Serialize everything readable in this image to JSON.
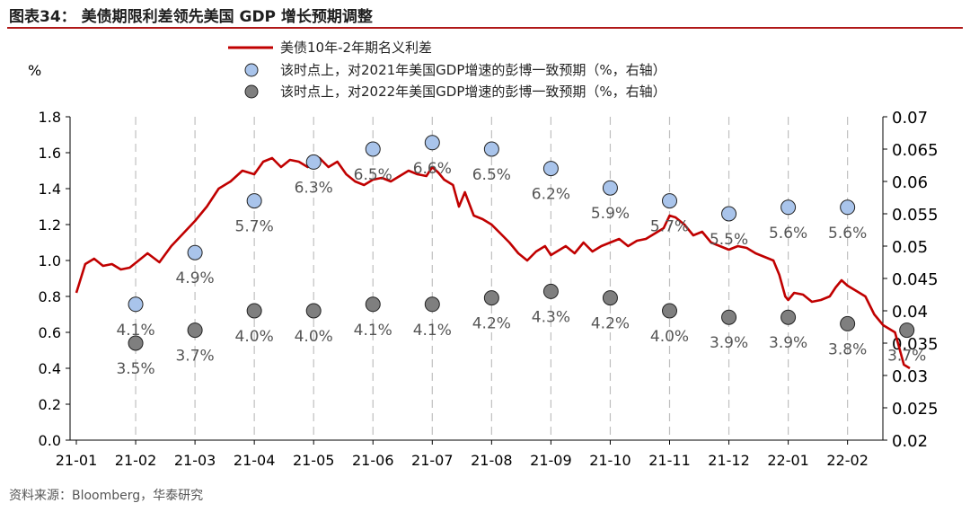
{
  "figure_title": "图表34：  美债期限利差领先美国 GDP 增长预期调整",
  "source": "资料来源：Bloomberg，华泰研究",
  "colors": {
    "spread": "#c00000",
    "gdp2021": "#a9c4eb",
    "gdp2022": "#7f7f7f",
    "axis": "#000000",
    "grid": "#bfbfbf",
    "title_rule": "#b01818"
  },
  "chart_data": {
    "type": "line",
    "left_axis": {
      "unit_label": "%",
      "min": 0.0,
      "max": 1.8,
      "ticks": [
        "0.0",
        "0.2",
        "0.4",
        "0.6",
        "0.8",
        "1.0",
        "1.2",
        "1.4",
        "1.6",
        "1.8"
      ]
    },
    "right_axis": {
      "min": 0.02,
      "max": 0.07,
      "ticks": [
        "0.02",
        "0.025",
        "0.03",
        "0.035",
        "0.04",
        "0.045",
        "0.05",
        "0.055",
        "0.06",
        "0.065",
        "0.07"
      ]
    },
    "x_ticks": [
      "21-01",
      "21-02",
      "21-03",
      "21-04",
      "21-05",
      "21-06",
      "21-07",
      "21-08",
      "21-09",
      "21-10",
      "21-11",
      "21-12",
      "22-01",
      "22-02"
    ],
    "series": [
      {
        "name": "美债10年-2年期名义利差",
        "axis": "left",
        "x": [
          0.0,
          0.15,
          0.3,
          0.45,
          0.6,
          0.75,
          0.9,
          1.05,
          1.2,
          1.4,
          1.6,
          1.8,
          2.0,
          2.2,
          2.4,
          2.6,
          2.8,
          3.0,
          3.15,
          3.3,
          3.45,
          3.6,
          3.75,
          3.9,
          4.0,
          4.1,
          4.25,
          4.4,
          4.55,
          4.7,
          4.85,
          5.0,
          5.15,
          5.3,
          5.45,
          5.6,
          5.75,
          5.9,
          6.0,
          6.1,
          6.2,
          6.35,
          6.45,
          6.55,
          6.7,
          6.85,
          7.0,
          7.15,
          7.3,
          7.45,
          7.6,
          7.75,
          7.9,
          8.0,
          8.1,
          8.25,
          8.4,
          8.55,
          8.7,
          8.85,
          9.0,
          9.15,
          9.3,
          9.45,
          9.6,
          9.75,
          9.9,
          10.0,
          10.1,
          10.25,
          10.4,
          10.55,
          10.7,
          10.85,
          11.0,
          11.15,
          11.3,
          11.45,
          11.6,
          11.75,
          11.85,
          11.95,
          12.0,
          12.1,
          12.25,
          12.4,
          12.55,
          12.7,
          12.8,
          12.9,
          13.0,
          13.15,
          13.3,
          13.45,
          13.6,
          13.8,
          13.95,
          14.05
        ],
        "values": [
          0.82,
          0.98,
          1.01,
          0.97,
          0.98,
          0.95,
          0.96,
          1.0,
          1.04,
          0.99,
          1.08,
          1.15,
          1.22,
          1.3,
          1.4,
          1.44,
          1.5,
          1.48,
          1.55,
          1.57,
          1.52,
          1.56,
          1.55,
          1.52,
          1.56,
          1.57,
          1.52,
          1.55,
          1.48,
          1.44,
          1.42,
          1.45,
          1.46,
          1.44,
          1.47,
          1.5,
          1.48,
          1.47,
          1.52,
          1.49,
          1.45,
          1.42,
          1.3,
          1.38,
          1.25,
          1.23,
          1.2,
          1.15,
          1.1,
          1.04,
          1.0,
          1.05,
          1.08,
          1.03,
          1.05,
          1.08,
          1.04,
          1.1,
          1.05,
          1.08,
          1.1,
          1.12,
          1.08,
          1.11,
          1.12,
          1.15,
          1.18,
          1.25,
          1.24,
          1.2,
          1.14,
          1.16,
          1.1,
          1.08,
          1.06,
          1.08,
          1.07,
          1.04,
          1.02,
          1.0,
          0.92,
          0.8,
          0.78,
          0.82,
          0.81,
          0.77,
          0.78,
          0.8,
          0.85,
          0.89,
          0.86,
          0.83,
          0.8,
          0.7,
          0.64,
          0.6,
          0.42,
          0.4
        ]
      },
      {
        "name": "该时点上，对2021年美国GDP增速的彭博一致预期（%，右轴）",
        "axis": "right",
        "x": [
          1,
          2,
          3,
          4,
          5,
          6,
          7,
          8,
          9,
          10,
          11,
          12,
          13
        ],
        "values": [
          0.041,
          0.049,
          0.057,
          0.063,
          0.065,
          0.066,
          0.065,
          0.062,
          0.059,
          0.057,
          0.055,
          0.056,
          0.056
        ],
        "labels": [
          "4.1%",
          "4.9%",
          "5.7%",
          "6.3%",
          "6.5%",
          "6.6%",
          "6.5%",
          "6.2%",
          "5.9%",
          "5.7%",
          "5.5%",
          "5.6%",
          "5.6%"
        ]
      },
      {
        "name": "该时点上，对2022年美国GDP增速的彭博一致预期（%，右轴）",
        "axis": "right",
        "x": [
          1,
          2,
          3,
          4,
          5,
          6,
          7,
          8,
          9,
          10,
          11,
          12,
          13,
          14
        ],
        "values": [
          0.035,
          0.037,
          0.04,
          0.04,
          0.041,
          0.041,
          0.042,
          0.043,
          0.042,
          0.04,
          0.039,
          0.039,
          0.038,
          0.037
        ],
        "labels": [
          "3.5%",
          "3.7%",
          "4.0%",
          "4.0%",
          "4.1%",
          "4.1%",
          "4.2%",
          "4.3%",
          "4.2%",
          "4.0%",
          "3.9%",
          "3.9%",
          "3.8%",
          "3.7%"
        ]
      }
    ]
  }
}
